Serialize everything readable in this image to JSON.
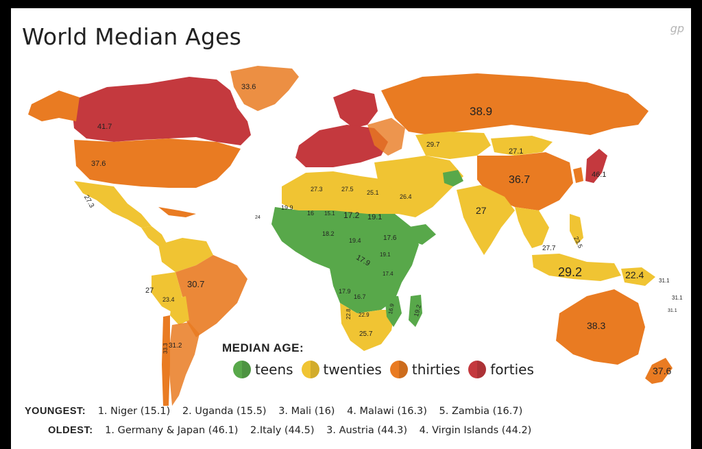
{
  "title": "World Median Ages",
  "logo": "gp",
  "colors": {
    "teens": "#58a84a",
    "twenties": "#f0c433",
    "thirties": "#e97b22",
    "forties": "#c4393e"
  },
  "legend": {
    "title": "MEDIAN AGE:",
    "items": [
      {
        "label": "teens",
        "color": "#58a84a"
      },
      {
        "label": "twenties",
        "color": "#f0c433"
      },
      {
        "label": "thirties",
        "color": "#e97b22"
      },
      {
        "label": "forties",
        "color": "#c4393e"
      }
    ]
  },
  "map_labels": {
    "greenland": "33.6",
    "canada": "41.7",
    "usa": "37.6",
    "mexico": "27.3",
    "russia": "38.9",
    "mongolia": "27.1",
    "china": "36.7",
    "japan": "46.1",
    "india": "27",
    "indonesia": "29.2",
    "png": "22.4",
    "australia": "38.3",
    "nz": "37.6",
    "brazil": "30.7",
    "peru": "27",
    "bolivia": "23.4",
    "chile": "33.3",
    "argentina": "31.2",
    "nafrica1": "27.3",
    "nafrica2": "27.5",
    "egypt": "25.1",
    "saudi": "26.4",
    "niger": "15.1",
    "chad": "17.2",
    "sudan": "19.1",
    "mali": "16",
    "mauritania": "19.9",
    "nigeria": "18.2",
    "car": "19.4",
    "ethiopia": "17.6",
    "drc": "17.9",
    "tanzania": "17.4",
    "angola": "17.9",
    "zambia": "16.7",
    "namibia": "22.8",
    "botswana": "22.9",
    "mozambique": "16.9",
    "madagascar": "19.2",
    "southafrica": "25.7",
    "kazakh": "29.7",
    "philippines": "23.5",
    "malaysia": "27.7",
    "pacific1": "31.1",
    "pacific2": "31.1",
    "pacific3": "31.1",
    "westafrica": "24",
    "kenya": "19.1"
  },
  "youngest": {
    "label": "YOUNGEST:",
    "items": [
      "1. Niger (15.1)",
      "2. Uganda (15.5)",
      "3. Mali (16)",
      "4. Malawi (16.3)",
      "5. Zambia (16.7)"
    ]
  },
  "oldest": {
    "label": "OLDEST:",
    "items": [
      "1. Germany & Japan (46.1)",
      "2.Italy (44.5)",
      "3. Austria (44.3)",
      "4. Virgin Islands (44.2)"
    ]
  }
}
